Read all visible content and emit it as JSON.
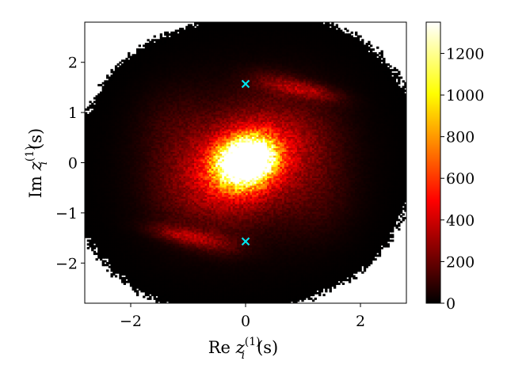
{
  "chart_data": {
    "type": "heatmap",
    "title": "",
    "xlabel": "Re z_i^(1)(s)",
    "ylabel": "Im z_i^(1)(s)",
    "xlabel_parts": {
      "pre": "Re ",
      "var": "z",
      "sup": "(1)",
      "sub": "i",
      "post": "(s)"
    },
    "ylabel_parts": {
      "pre": "Im ",
      "var": "z",
      "sup": "(1)",
      "sub": "i",
      "post": "(s)"
    },
    "xlim": [
      -2.8,
      2.8
    ],
    "ylim": [
      -2.8,
      2.8
    ],
    "x_ticks": [
      -2,
      0,
      2
    ],
    "y_ticks": [
      -2,
      -1,
      0,
      1,
      2
    ],
    "x_tick_labels": [
      "−2",
      "0",
      "2"
    ],
    "y_tick_labels": [
      "−2",
      "−1",
      "0",
      "1",
      "2"
    ],
    "grid": false,
    "colormap": "hot",
    "colorbar": {
      "min": 0,
      "max": 1350,
      "ticks": [
        0,
        200,
        400,
        600,
        800,
        1000,
        1200
      ],
      "tick_labels": [
        "0",
        "200",
        "400",
        "600",
        "800",
        "1000",
        "1200"
      ]
    },
    "markers": [
      {
        "x": 0,
        "y": 1.57,
        "symbol": "x",
        "color": "#00e5ee"
      },
      {
        "x": 0,
        "y": -1.57,
        "symbol": "x",
        "color": "#00e5ee"
      }
    ],
    "density_components": [
      {
        "x": -0.1,
        "y": -0.05,
        "sx": 0.28,
        "sy": 0.28,
        "rho": 0.0,
        "weight": 1300
      },
      {
        "x": 0.15,
        "y": 0.15,
        "sx": 0.25,
        "sy": 0.25,
        "rho": 0.0,
        "weight": 1150
      },
      {
        "x": 0.0,
        "y": 0.0,
        "sx": 0.62,
        "sy": 0.62,
        "rho": 0.3,
        "weight": 620
      },
      {
        "x": 0.0,
        "y": 0.0,
        "sx": 1.05,
        "sy": 1.05,
        "rho": 0.1,
        "weight": 140
      },
      {
        "x": 1.05,
        "y": 1.45,
        "sx": 0.38,
        "sy": 0.14,
        "rho": -0.6,
        "weight": 260
      },
      {
        "x": -1.05,
        "y": -1.45,
        "sx": 0.38,
        "sy": 0.14,
        "rho": -0.6,
        "weight": 260
      },
      {
        "x": 0.5,
        "y": 1.6,
        "sx": 0.35,
        "sy": 0.18,
        "rho": -0.3,
        "weight": 110
      },
      {
        "x": -0.5,
        "y": -1.6,
        "sx": 0.35,
        "sy": 0.18,
        "rho": -0.3,
        "weight": 110
      },
      {
        "x": 1.2,
        "y": 0.4,
        "sx": 0.4,
        "sy": 0.6,
        "rho": 0.0,
        "weight": 70
      },
      {
        "x": -1.2,
        "y": -0.4,
        "sx": 0.4,
        "sy": 0.6,
        "rho": 0.0,
        "weight": 70
      },
      {
        "x": -1.2,
        "y": 0.7,
        "sx": 0.45,
        "sy": 0.55,
        "rho": 0.0,
        "weight": 75
      },
      {
        "x": 1.2,
        "y": -0.7,
        "sx": 0.45,
        "sy": 0.55,
        "rho": 0.0,
        "weight": 75
      }
    ]
  }
}
